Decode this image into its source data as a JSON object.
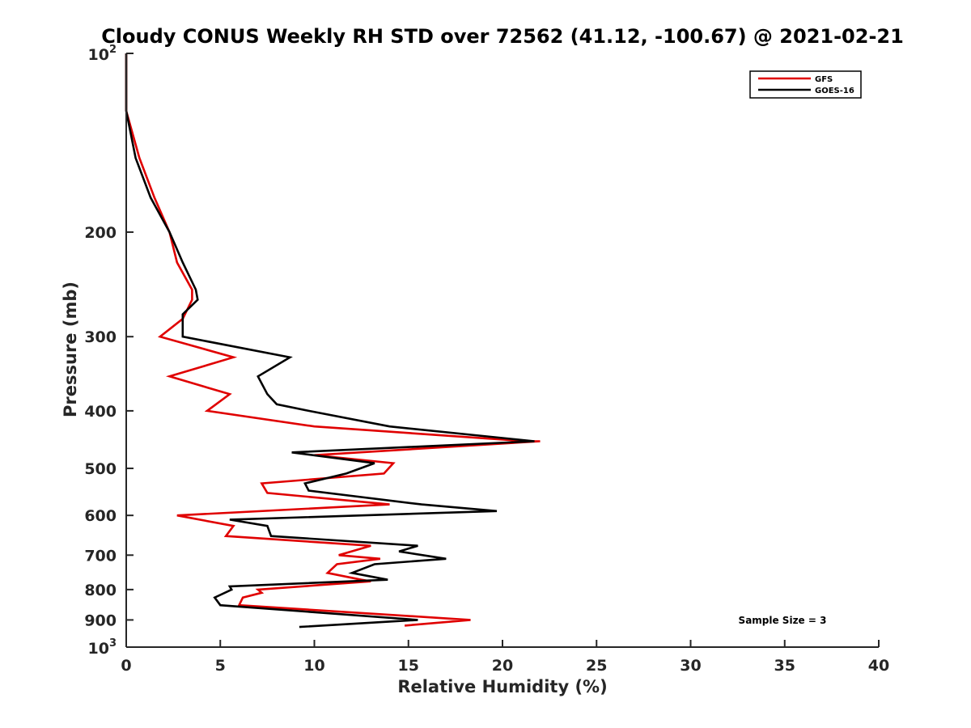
{
  "chart_data": {
    "type": "line",
    "title": "Cloudy CONUS Weekly RH STD over 72562 (41.12, -100.67) @ 2021-02-21",
    "xlabel": "Relative Humidity (%)",
    "ylabel": "Pressure (mb)",
    "xlim": [
      0,
      40
    ],
    "ylim": [
      100,
      1000
    ],
    "y_scale": "log",
    "y_reversed": true,
    "grid": false,
    "legend_position": "top-right",
    "x_ticks": [
      "0",
      "5",
      "10",
      "15",
      "20",
      "25",
      "30",
      "35",
      "40"
    ],
    "y_ticks": [
      {
        "value": 100,
        "base": "10",
        "exp": "2",
        "label": ""
      },
      {
        "value": 200,
        "base": "",
        "exp": "",
        "label": "200"
      },
      {
        "value": 300,
        "base": "",
        "exp": "",
        "label": "300"
      },
      {
        "value": 400,
        "base": "",
        "exp": "",
        "label": "400"
      },
      {
        "value": 500,
        "base": "",
        "exp": "",
        "label": "500"
      },
      {
        "value": 600,
        "base": "",
        "exp": "",
        "label": "600"
      },
      {
        "value": 700,
        "base": "",
        "exp": "",
        "label": "700"
      },
      {
        "value": 800,
        "base": "",
        "exp": "",
        "label": "800"
      },
      {
        "value": 900,
        "base": "",
        "exp": "",
        "label": "900"
      },
      {
        "value": 1000,
        "base": "10",
        "exp": "3",
        "label": ""
      }
    ],
    "annotation": "Sample Size = 3",
    "series": [
      {
        "name": "GFS",
        "color": "#e00000",
        "points": [
          [
            0,
            100
          ],
          [
            0,
            125
          ],
          [
            0.7,
            150
          ],
          [
            1.5,
            175
          ],
          [
            2.3,
            200
          ],
          [
            2.7,
            225
          ],
          [
            3.5,
            250
          ],
          [
            3.5,
            260
          ],
          [
            3.0,
            280
          ],
          [
            1.8,
            300
          ],
          [
            5.7,
            325
          ],
          [
            2.3,
            350
          ],
          [
            5.5,
            375
          ],
          [
            4.3,
            400
          ],
          [
            10.0,
            425
          ],
          [
            21.3,
            450
          ],
          [
            22.0,
            450
          ],
          [
            10.0,
            475
          ],
          [
            14.2,
            490
          ],
          [
            13.7,
            510
          ],
          [
            7.2,
            530
          ],
          [
            7.5,
            550
          ],
          [
            14.0,
            575
          ],
          [
            2.7,
            600
          ],
          [
            5.7,
            625
          ],
          [
            5.3,
            650
          ],
          [
            13.0,
            675
          ],
          [
            11.3,
            700
          ],
          [
            13.5,
            710
          ],
          [
            11.2,
            725
          ],
          [
            10.7,
            750
          ],
          [
            12.5,
            770
          ],
          [
            13.0,
            775
          ],
          [
            7.0,
            800
          ],
          [
            7.2,
            810
          ],
          [
            6.2,
            825
          ],
          [
            6.0,
            850
          ],
          [
            18.3,
            900
          ],
          [
            14.8,
            920
          ]
        ]
      },
      {
        "name": "GOES-16",
        "color": "#000000",
        "points": [
          [
            0,
            100
          ],
          [
            0,
            125
          ],
          [
            0.5,
            150
          ],
          [
            1.3,
            175
          ],
          [
            2.3,
            200
          ],
          [
            3.0,
            225
          ],
          [
            3.7,
            250
          ],
          [
            3.8,
            260
          ],
          [
            3.0,
            275
          ],
          [
            3.0,
            300
          ],
          [
            8.7,
            325
          ],
          [
            7.0,
            350
          ],
          [
            7.5,
            375
          ],
          [
            8.0,
            390
          ],
          [
            9.7,
            400
          ],
          [
            14.0,
            425
          ],
          [
            21.7,
            450
          ],
          [
            8.8,
            470
          ],
          [
            13.2,
            490
          ],
          [
            11.7,
            510
          ],
          [
            9.5,
            530
          ],
          [
            9.7,
            545
          ],
          [
            15.7,
            575
          ],
          [
            19.7,
            590
          ],
          [
            5.5,
            610
          ],
          [
            7.5,
            625
          ],
          [
            7.7,
            650
          ],
          [
            15.5,
            675
          ],
          [
            14.5,
            690
          ],
          [
            17.0,
            710
          ],
          [
            13.2,
            725
          ],
          [
            12.0,
            750
          ],
          [
            13.9,
            770
          ],
          [
            5.5,
            790
          ],
          [
            5.6,
            800
          ],
          [
            4.7,
            825
          ],
          [
            5.0,
            850
          ],
          [
            15.5,
            900
          ],
          [
            9.2,
            925
          ]
        ]
      }
    ]
  }
}
